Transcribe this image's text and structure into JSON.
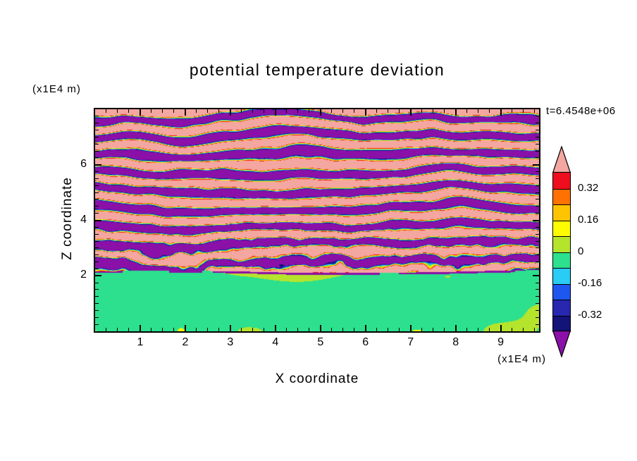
{
  "title": "potential temperature deviation",
  "time_label": "t=6.4548e+06",
  "x_axis": {
    "label": "X coordinate",
    "unit": "(x1E4 m)"
  },
  "z_axis": {
    "label": "Z coordinate",
    "unit": "(x1E4 m)"
  },
  "chart_data": {
    "type": "heatmap",
    "title": "potential temperature deviation",
    "xlabel": "X coordinate (x1E4 m)",
    "ylabel": "Z coordinate (x1E4 m)",
    "time_label": "t=6.4548e+06",
    "x_range": [
      0,
      9.85
    ],
    "z_range": [
      0,
      8
    ],
    "x_ticks": [
      1,
      2,
      3,
      4,
      5,
      6,
      7,
      8,
      9
    ],
    "z_ticks": [
      2,
      4,
      6
    ],
    "grid": false,
    "legend_position": "right-colorbar",
    "colorbar": {
      "tick_labels": [
        "0.32",
        "0.16",
        "0",
        "-0.16",
        "-0.32"
      ],
      "levels": [
        0.4,
        0.32,
        0.24,
        0.16,
        0.08,
        0,
        -0.08,
        -0.16,
        -0.24,
        -0.32,
        -0.4
      ],
      "band_colors_high_to_low": [
        "#ef0e1d",
        "#ff7100",
        "#ffc400",
        "#fdfd00",
        "#b5e42c",
        "#2ce08d",
        "#28ccf4",
        "#1e56f0",
        "#2727b0",
        "#131378"
      ],
      "above_color": "#f4a6a1",
      "below_color": "#8a10a8"
    },
    "field": {
      "description": "Filled-contour potential temperature deviation from an atmospheric simulation: a stably stratified region above z≈2.1 (x1E4 m) filled with wavy horizontal stripes saturating beyond +0.4 (salmon) and -0.4 (purple) separated by thin rainbow transition bands; turbulence and stripe breakup increase toward the interface; a well-mixed layer below z≈2.1 with small deviations near 0 (spring green ≈ -0.08..0, yellow-green ≈ 0..0.08, rare yellow specks); a thin broken dark (navy/purple) line along the interface.",
      "interface_height": 2.1,
      "stripe_cycles_per_unit_z": 1.52,
      "amplitude": 1.15,
      "seed": 7
    }
  }
}
